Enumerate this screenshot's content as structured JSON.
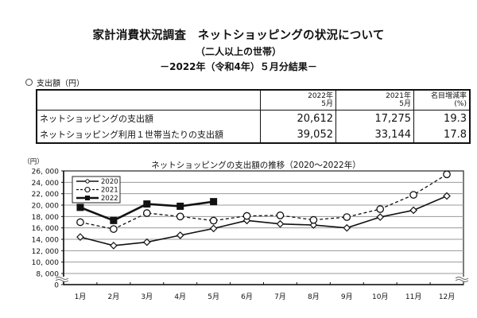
{
  "header": {
    "title": "家計消費状況調査　ネットショッピングの状況について",
    "subtitle": "（二人以上の世帯）",
    "period": "－2022年（令和4年）５月分結果－"
  },
  "section_label": "支出額（円）",
  "table": {
    "columns": [
      {
        "line1": "",
        "line2": ""
      },
      {
        "line1": "2022年",
        "line2": "5月"
      },
      {
        "line1": "2021年",
        "line2": "5月"
      },
      {
        "line1": "名目増減率",
        "line2": "(%)"
      }
    ],
    "rows": [
      {
        "label": "ネットショッピングの支出額",
        "values": [
          "20,612",
          "17,275",
          "19.3"
        ]
      },
      {
        "label": "ネットショッピング利用１世帯当たりの支出額",
        "values": [
          "39,052",
          "33,144",
          "17.8"
        ]
      }
    ]
  },
  "chart_data": {
    "type": "line",
    "title": "ネットショッピングの支出額の推移（2020～2022年）",
    "ylabel": "（円）",
    "xlabel": "",
    "categories": [
      "1月",
      "2月",
      "3月",
      "4月",
      "5月",
      "6月",
      "7月",
      "8月",
      "9月",
      "10月",
      "11月",
      "12月"
    ],
    "yticks": [
      0,
      8000,
      10000,
      12000,
      14000,
      16000,
      18000,
      20000,
      22000,
      24000,
      26000
    ],
    "ytick_labels": [
      "0",
      "8, 000",
      "10, 000",
      "12, 000",
      "14, 000",
      "16, 000",
      "18, 000",
      "20, 000",
      "22, 000",
      "24, 000",
      "26, 000"
    ],
    "ylim": [
      8000,
      26000
    ],
    "axis_break": true,
    "grid": true,
    "legend_position": "top-left",
    "series": [
      {
        "name": "2020",
        "marker": "diamond-open",
        "dash": "solid",
        "values": [
          14400,
          12900,
          13500,
          14700,
          15900,
          17300,
          16700,
          16500,
          16000,
          17900,
          19100,
          21600
        ]
      },
      {
        "name": "2021",
        "marker": "circle-open",
        "dash": "dashed",
        "values": [
          17000,
          15800,
          18600,
          18000,
          17275,
          18100,
          18200,
          17400,
          17900,
          19300,
          21800,
          25400
        ]
      },
      {
        "name": "2022",
        "marker": "square-filled",
        "dash": "solid-thick",
        "values": [
          19600,
          17300,
          20200,
          19800,
          20612,
          null,
          null,
          null,
          null,
          null,
          null,
          null
        ]
      }
    ]
  }
}
